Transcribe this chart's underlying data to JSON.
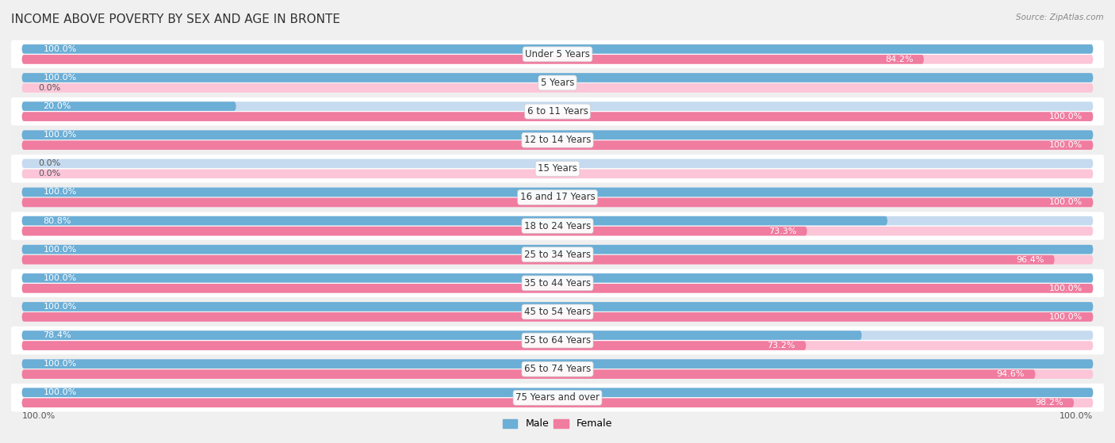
{
  "title": "INCOME ABOVE POVERTY BY SEX AND AGE IN BRONTE",
  "source": "Source: ZipAtlas.com",
  "categories": [
    "Under 5 Years",
    "5 Years",
    "6 to 11 Years",
    "12 to 14 Years",
    "15 Years",
    "16 and 17 Years",
    "18 to 24 Years",
    "25 to 34 Years",
    "35 to 44 Years",
    "45 to 54 Years",
    "55 to 64 Years",
    "65 to 74 Years",
    "75 Years and over"
  ],
  "male_values": [
    100.0,
    100.0,
    20.0,
    100.0,
    0.0,
    100.0,
    80.8,
    100.0,
    100.0,
    100.0,
    78.4,
    100.0,
    100.0
  ],
  "female_values": [
    84.2,
    0.0,
    100.0,
    100.0,
    0.0,
    100.0,
    73.3,
    96.4,
    100.0,
    100.0,
    73.2,
    94.6,
    98.2
  ],
  "male_color": "#6baed6",
  "female_color": "#f07ca0",
  "male_light_color": "#c6dbef",
  "female_light_color": "#fcc5d8",
  "row_bg_even": "#ffffff",
  "row_bg_odd": "#efefef",
  "outer_bg": "#f0f0f0",
  "title_fontsize": 11,
  "label_fontsize": 8.5,
  "value_fontsize": 8,
  "source_fontsize": 7.5,
  "legend_fontsize": 9
}
